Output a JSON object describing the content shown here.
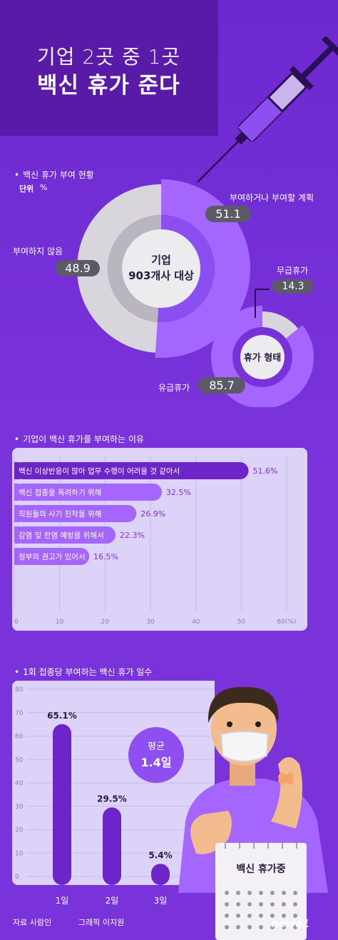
{
  "header": {
    "line1": "기업 2곳 중 1곳",
    "line2": "백신 휴가 준다"
  },
  "section1": {
    "title": "백신 휴가 부여 현황",
    "unit_label": "단위",
    "unit_value": "%",
    "center_line1": "기업",
    "center_line2": "903개사 대상",
    "label_give": "부여하거나 부여할 계획",
    "value_give": "51.1",
    "label_not": "부여하지 않음",
    "value_not": "48.9",
    "sub_center": "휴가 형태",
    "label_unpaid": "무급휴가",
    "value_unpaid": "14.3",
    "label_paid": "유급휴가",
    "value_paid": "85.7"
  },
  "section2": {
    "title": "기업이 백신 휴가를 부여하는 이유"
  },
  "section3": {
    "title": "1회 접종당 부여하는 백신 휴가 일수",
    "avg_label": "평균",
    "avg_value": "1.4일",
    "calendar_title": "백신 휴가중"
  },
  "footer": {
    "source": "자료 사람인",
    "graphic": "그래픽 이지원",
    "logo": "news1"
  },
  "colors": {
    "purple": "#a565ff",
    "dark_purple": "#5a1aa8",
    "grey": "#d8d6dc",
    "panel": "#ddd2f7"
  },
  "chart_data": [
    {
      "type": "pie",
      "title": "백신 휴가 부여 현황",
      "categories": [
        "부여하거나 부여할 계획",
        "부여하지 않음"
      ],
      "values": [
        51.1,
        48.9
      ],
      "unit": "%"
    },
    {
      "type": "pie",
      "title": "휴가 형태",
      "categories": [
        "무급휴가",
        "유급휴가"
      ],
      "values": [
        14.3,
        85.7
      ],
      "unit": "%"
    },
    {
      "type": "bar",
      "title": "기업이 백신 휴가를 부여하는 이유",
      "categories": [
        "백신 이상반응이 많아 업무 수행이 어려울 것 같아서",
        "백신 접종을 독려하기 위해",
        "직원들의 사기 진작을 위해",
        "감염 및 전염 예방을 위해서",
        "정부의 권고가 있어서"
      ],
      "values": [
        51.6,
        32.5,
        26.9,
        22.3,
        16.5
      ],
      "value_labels": [
        "51.6%",
        "32.5%",
        "26.9%",
        "22.3%",
        "16.5%"
      ],
      "xlim": [
        0,
        60
      ],
      "ticks": [
        "0",
        "10",
        "20",
        "30",
        "40",
        "50",
        "60(%)"
      ]
    },
    {
      "type": "bar",
      "title": "1회 접종당 부여하는 백신 휴가 일수",
      "categories": [
        "1일",
        "2일",
        "3일"
      ],
      "values": [
        65.1,
        29.5,
        5.4
      ],
      "value_labels": [
        "65.1%",
        "29.5%",
        "5.4%"
      ],
      "ylim": [
        0,
        80
      ],
      "ticks": [
        "0",
        "10",
        "20",
        "30",
        "40",
        "50",
        "60",
        "70",
        "80"
      ]
    }
  ]
}
